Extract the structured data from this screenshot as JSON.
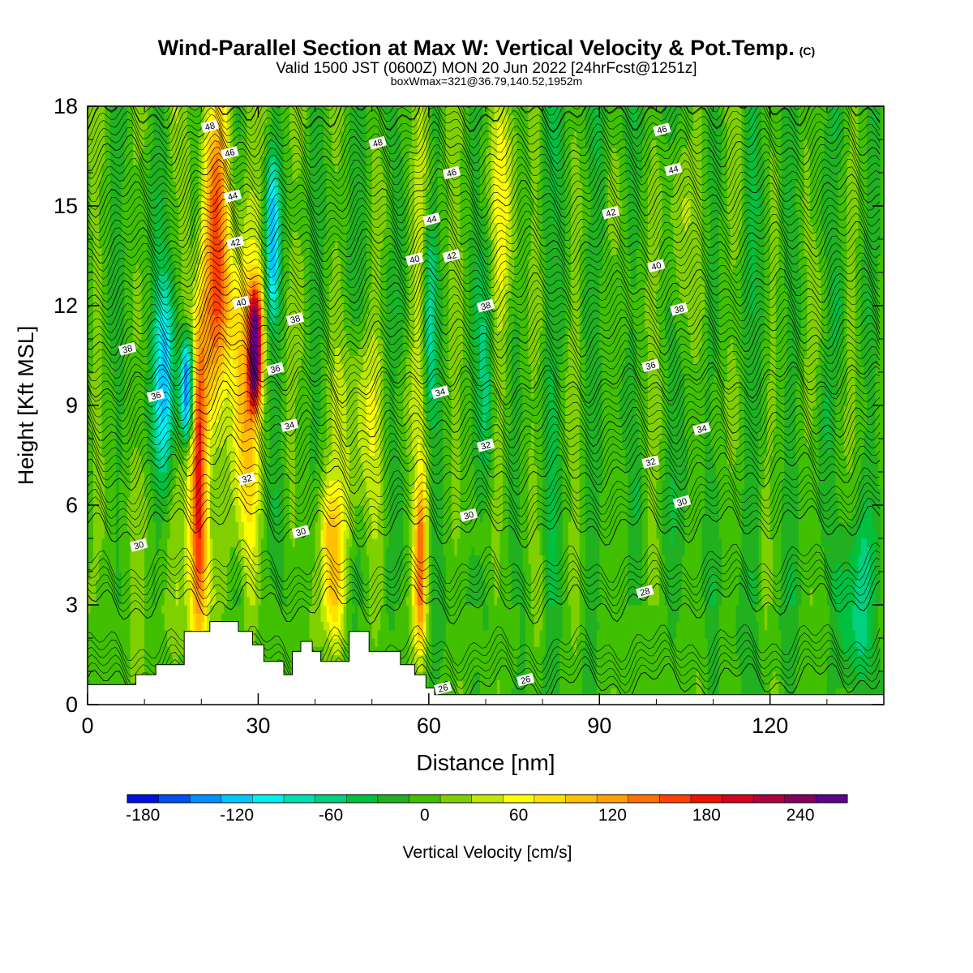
{
  "chart_data": {
    "type": "heatmap",
    "title": "Wind-Parallel Section at Max W: Vertical Velocity & Pot.Temp.",
    "copyright": "(C)",
    "subtitle": "Valid 1500 JST (0600Z) MON 20 Jun 2022 [24hrFcst@1251z]",
    "subtitle2": "boxWmax=321@36.79,140.52,1952m",
    "xlabel": "Distance [nm]",
    "ylabel": "Height [Kft MSL]",
    "xlim": [
      0,
      140
    ],
    "ylim": [
      0,
      18
    ],
    "x_ticks": [
      0,
      30,
      60,
      90,
      120
    ],
    "y_ticks": [
      0,
      3,
      6,
      9,
      12,
      15,
      18
    ],
    "colorbar": {
      "label": "Vertical Velocity [cm/s]",
      "min": -180,
      "step": 20,
      "tick_labels": [
        -180,
        -120,
        -60,
        0,
        60,
        120,
        180,
        240
      ],
      "colors": [
        "#0010e0",
        "#0050f0",
        "#0090ff",
        "#00c8ff",
        "#00f0f0",
        "#00e0b0",
        "#00d080",
        "#00c040",
        "#20b020",
        "#40c000",
        "#80d000",
        "#c0e800",
        "#ffff00",
        "#ffe000",
        "#ffc000",
        "#ffa000",
        "#ff7000",
        "#ff4000",
        "#f01000",
        "#d80020",
        "#b00040",
        "#880060",
        "#600090"
      ]
    },
    "field": {
      "background": 10,
      "features": [
        {
          "center_x": 13.5,
          "width": 1.8,
          "z_range": [
            7.5,
            12.5
          ],
          "value": -110
        },
        {
          "center_x": 17.5,
          "width": 1.2,
          "z_range": [
            8.5,
            10.5
          ],
          "value": -160
        },
        {
          "center_x": 19.5,
          "width": 1.6,
          "z_range": [
            2.5,
            11
          ],
          "value": 200
        },
        {
          "center_x": 22.5,
          "width": 2.5,
          "z_range": [
            10,
            17.5
          ],
          "value": 160
        },
        {
          "center_x": 27.5,
          "width": 2.5,
          "z_range": [
            5,
            14
          ],
          "value": 110
        },
        {
          "center_x": 29.5,
          "width": 1.2,
          "z_range": [
            9.5,
            12
          ],
          "value": 230
        },
        {
          "center_x": 32.5,
          "width": 1.3,
          "z_range": [
            12,
            16
          ],
          "value": -110
        },
        {
          "center_x": 43,
          "width": 2.5,
          "z_range": [
            2.5,
            6
          ],
          "value": 100
        },
        {
          "center_x": 48,
          "width": 3.5,
          "z_range": [
            6,
            11
          ],
          "value": 50
        },
        {
          "center_x": 58.5,
          "width": 1.1,
          "z_range": [
            2,
            6
          ],
          "value": 140
        },
        {
          "center_x": 58.8,
          "width": 1.5,
          "z_range": [
            6,
            18
          ],
          "value": 50
        },
        {
          "center_x": 60,
          "width": 1.2,
          "z_range": [
            9,
            14
          ],
          "value": -70
        },
        {
          "center_x": 70,
          "width": 1.5,
          "z_range": [
            7,
            14
          ],
          "value": -50
        },
        {
          "center_x": 73.5,
          "width": 2.5,
          "z_range": [
            12,
            18
          ],
          "value": 60
        },
        {
          "center_x": 104,
          "width": 2,
          "z_range": [
            12,
            17
          ],
          "value": 40
        },
        {
          "center_x": 135,
          "width": 3,
          "z_range": [
            1,
            5
          ],
          "value": -45
        }
      ]
    },
    "terrain_kft": [
      [
        0,
        0.6
      ],
      [
        8.5,
        0.6
      ],
      [
        8.5,
        0.9
      ],
      [
        12,
        0.9
      ],
      [
        12,
        1.2
      ],
      [
        17,
        1.2
      ],
      [
        17,
        2.2
      ],
      [
        21.5,
        2.2
      ],
      [
        21.5,
        2.5
      ],
      [
        26.5,
        2.5
      ],
      [
        26.5,
        2.2
      ],
      [
        29,
        2.2
      ],
      [
        29,
        1.8
      ],
      [
        31,
        1.8
      ],
      [
        31,
        1.3
      ],
      [
        34.5,
        1.3
      ],
      [
        34.5,
        0.9
      ],
      [
        36,
        0.9
      ],
      [
        36,
        1.6
      ],
      [
        37.5,
        1.6
      ],
      [
        37.5,
        1.9
      ],
      [
        39.5,
        1.9
      ],
      [
        39.5,
        1.6
      ],
      [
        41,
        1.6
      ],
      [
        41,
        1.3
      ],
      [
        46,
        1.3
      ],
      [
        46,
        2.2
      ],
      [
        49.5,
        2.2
      ],
      [
        49.5,
        1.6
      ],
      [
        55,
        1.6
      ],
      [
        55,
        1.2
      ],
      [
        57.5,
        1.2
      ],
      [
        57.5,
        0.9
      ],
      [
        59.5,
        0.9
      ],
      [
        59.5,
        0.5
      ],
      [
        61,
        0.5
      ],
      [
        61,
        0.3
      ],
      [
        140,
        0.3
      ]
    ],
    "isentropes": [
      {
        "theta": 26,
        "base_z": 0.6,
        "labels": [
          [
            62.5,
            0.5
          ],
          [
            77,
            0.75
          ]
        ]
      },
      {
        "theta": 28,
        "base_z": 3.0,
        "labels": [
          [
            98,
            3.4
          ]
        ]
      },
      {
        "theta": 30,
        "base_z": 5.3,
        "labels": [
          [
            9,
            4.8
          ],
          [
            37.5,
            5.2
          ],
          [
            67,
            5.7
          ],
          [
            104.5,
            6.1
          ]
        ]
      },
      {
        "theta": 32,
        "base_z": 6.9,
        "labels": [
          [
            28,
            6.8
          ],
          [
            70,
            7.8
          ],
          [
            99,
            7.3
          ]
        ]
      },
      {
        "theta": 34,
        "base_z": 8.3,
        "labels": [
          [
            35.5,
            8.4
          ],
          [
            62,
            9.4
          ],
          [
            108,
            8.3
          ]
        ]
      },
      {
        "theta": 36,
        "base_z": 9.6,
        "labels": [
          [
            12,
            9.3
          ],
          [
            33,
            10.1
          ],
          [
            99,
            10.2
          ]
        ]
      },
      {
        "theta": 38,
        "base_z": 11.0,
        "labels": [
          [
            7,
            10.7
          ],
          [
            36.5,
            11.6
          ],
          [
            70,
            12.0
          ],
          [
            104,
            11.9
          ]
        ]
      },
      {
        "theta": 40,
        "base_z": 12.4,
        "labels": [
          [
            27,
            12.1
          ],
          [
            57.5,
            13.4
          ],
          [
            100,
            13.2
          ]
        ]
      },
      {
        "theta": 42,
        "base_z": 13.8,
        "labels": [
          [
            26,
            13.9
          ],
          [
            64,
            13.5
          ],
          [
            92,
            14.8
          ]
        ]
      },
      {
        "theta": 44,
        "base_z": 15.2,
        "labels": [
          [
            25.5,
            15.3
          ],
          [
            60.5,
            14.6
          ],
          [
            103,
            16.1
          ]
        ]
      },
      {
        "theta": 46,
        "base_z": 16.6,
        "labels": [
          [
            25,
            16.6
          ],
          [
            64,
            16.0
          ],
          [
            101,
            17.3
          ]
        ]
      },
      {
        "theta": 48,
        "base_z": 17.8,
        "labels": [
          [
            21.5,
            17.4
          ],
          [
            51,
            16.9
          ]
        ]
      }
    ]
  }
}
